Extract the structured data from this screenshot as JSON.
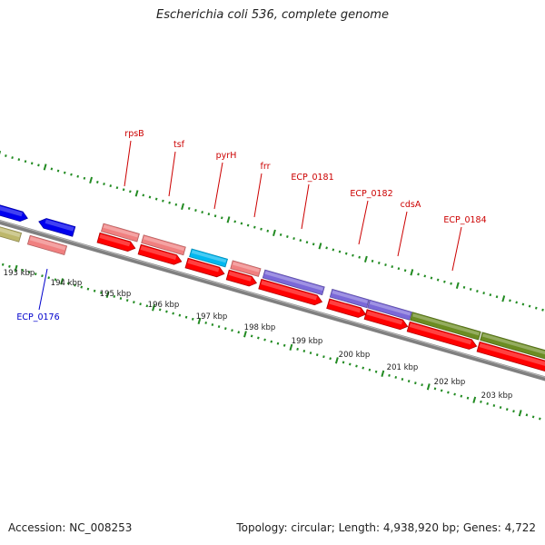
{
  "title": "Escherichia coli 536, complete genome",
  "footer": {
    "accession": "Accession: NC_008253",
    "info": "Topology: circular; Length: 4,938,920 bp; Genes: 4,722"
  },
  "scale_labels": [
    "193 kbp",
    "194 kbp",
    "195 kbp",
    "196 kbp",
    "197 kbp",
    "198 kbp",
    "199 kbp",
    "200 kbp",
    "201 kbp",
    "202 kbp",
    "203 kbp"
  ],
  "colors": {
    "backbone": "#808080",
    "cds_forward": "#ff0000",
    "gene_light": "#f08080",
    "cyan": "#00b8f0",
    "purple": "#7a68d8",
    "olive": "#6b8c22",
    "khaki": "#bdb76b",
    "blue": "#0000ee",
    "ticks": "#228b22",
    "label_red": "#cc0000",
    "label_blue": "#0000cc"
  },
  "labels_top": [
    "rpsB",
    "tsf",
    "pyrH",
    "frr",
    "ECP_0181",
    "ECP_0182",
    "cdsA",
    "ECP_0184"
  ],
  "labels_bottom": [
    "ECP_0176"
  ]
}
